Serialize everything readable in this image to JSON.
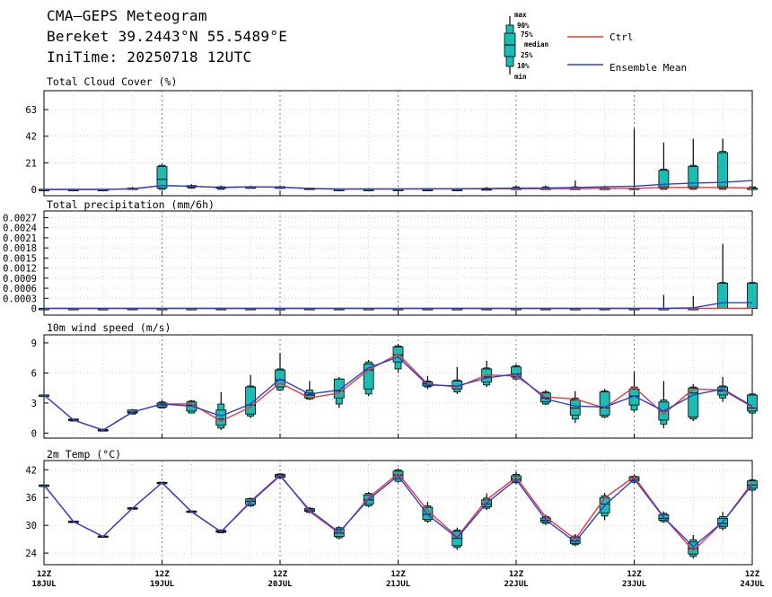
{
  "header": {
    "title": "CMA—GEPS Meteogram",
    "location": "Bereket 39.2443°N 55.5489°E",
    "init": "IniTime: 20250718 12UTC"
  },
  "legend": {
    "key_labels": [
      "max",
      "90%",
      "75%",
      "median",
      "25%",
      "10%",
      "min"
    ],
    "ctrl": "Ctrl",
    "mean": "Ensemble Mean",
    "ctrl_color": "#e8383a",
    "mean_color": "#2b3fd6",
    "box_color": "#1cbcb4"
  },
  "chart_data": [
    {
      "type": "box",
      "title": "Total Cloud Cover (%)",
      "yticks": [
        "0",
        "21",
        "42",
        "63"
      ],
      "ylim": [
        -5,
        78
      ],
      "x": [
        0,
        1,
        2,
        3,
        4,
        5,
        6,
        7,
        8,
        9,
        10,
        11,
        12,
        13,
        14,
        15,
        16,
        17,
        18,
        19,
        20,
        21,
        22,
        23,
        24
      ],
      "boxes": [
        [
          0,
          0,
          0,
          0,
          0,
          0,
          0
        ],
        [
          0,
          0,
          0,
          0,
          0,
          0,
          0
        ],
        [
          0,
          0,
          0,
          0,
          0,
          0,
          0
        ],
        [
          0,
          0,
          0,
          0.5,
          1,
          1,
          2
        ],
        [
          0,
          0,
          1,
          8,
          18,
          19,
          20
        ],
        [
          1,
          1,
          2,
          2,
          3,
          3,
          4
        ],
        [
          0,
          0,
          1,
          1,
          2,
          2,
          3
        ],
        [
          1,
          1,
          1,
          2,
          2,
          2,
          3
        ],
        [
          1,
          1,
          1,
          2,
          2,
          2,
          3
        ],
        [
          0,
          0,
          0,
          0,
          1,
          1,
          1
        ],
        [
          0,
          0,
          0,
          0,
          0,
          0,
          0.5
        ],
        [
          0,
          0,
          0,
          0,
          0,
          0,
          1
        ],
        [
          0,
          0,
          0,
          0,
          0,
          0,
          1
        ],
        [
          0,
          0,
          0,
          0,
          0,
          0,
          1
        ],
        [
          0,
          0,
          0,
          0,
          0,
          0,
          0.5
        ],
        [
          0,
          0,
          0,
          0,
          0.5,
          1,
          2
        ],
        [
          0,
          0,
          0,
          0.5,
          1,
          2,
          3
        ],
        [
          0,
          0,
          0,
          0.5,
          1,
          2,
          3
        ],
        [
          0,
          0,
          0.5,
          1,
          1,
          2,
          7
        ],
        [
          0,
          0,
          0.5,
          1,
          1,
          2,
          3
        ],
        [
          0,
          0,
          0.5,
          1,
          1,
          1,
          48
        ],
        [
          0,
          0,
          1,
          2,
          15,
          16,
          37
        ],
        [
          0,
          0,
          1,
          2,
          18,
          19,
          40
        ],
        [
          0,
          0,
          1,
          2,
          29,
          30,
          40
        ],
        [
          0,
          0,
          0,
          1,
          1,
          2,
          3
        ]
      ],
      "series": [
        {
          "name": "Ctrl",
          "values": [
            0,
            0,
            0,
            0.3,
            3,
            2.5,
            1.5,
            2,
            1.8,
            0.6,
            0.2,
            0.3,
            0.3,
            0.4,
            0.4,
            0.5,
            0.5,
            0.5,
            0.7,
            0.8,
            0.8,
            1.5,
            1.5,
            1.5,
            1
          ]
        },
        {
          "name": "Ensemble Mean",
          "values": [
            0,
            0,
            0,
            0.5,
            3,
            2.5,
            1.5,
            2,
            1.8,
            0.7,
            0.3,
            0.4,
            0.4,
            0.5,
            0.5,
            0.7,
            1,
            1,
            1.5,
            2,
            2.5,
            4,
            5,
            5.5,
            7
          ]
        }
      ]
    },
    {
      "type": "box",
      "title": "Total precipitation (mm/6h)",
      "yticks": [
        "0",
        "0.0003",
        "0.0006",
        "0.0009",
        "0.0012",
        "0.0015",
        "0.0018",
        "0.0021",
        "0.0024",
        "0.0027"
      ],
      "ylim": [
        -0.0002,
        0.0029
      ],
      "x": [
        0,
        1,
        2,
        3,
        4,
        5,
        6,
        7,
        8,
        9,
        10,
        11,
        12,
        13,
        14,
        15,
        16,
        17,
        18,
        19,
        20,
        21,
        22,
        23,
        24
      ],
      "boxes": [
        [
          0,
          0,
          0,
          0,
          0,
          0,
          0
        ],
        [
          0,
          0,
          0,
          0,
          0,
          0,
          0
        ],
        [
          0,
          0,
          0,
          0,
          0,
          0,
          0
        ],
        [
          0,
          0,
          0,
          0,
          0,
          0,
          0
        ],
        [
          0,
          0,
          0,
          0,
          0,
          0,
          0
        ],
        [
          0,
          0,
          0,
          0,
          0,
          0,
          0
        ],
        [
          0,
          0,
          0,
          0,
          0,
          0,
          0
        ],
        [
          0,
          0,
          0,
          0,
          0,
          0,
          0
        ],
        [
          0,
          0,
          0,
          0,
          0,
          0,
          0
        ],
        [
          0,
          0,
          0,
          0,
          0,
          0,
          0
        ],
        [
          0,
          0,
          0,
          0,
          0,
          0,
          0
        ],
        [
          0,
          0,
          0,
          0,
          0,
          0,
          0
        ],
        [
          0,
          0,
          0,
          0,
          0,
          0,
          0
        ],
        [
          0,
          0,
          0,
          0,
          0,
          0,
          0
        ],
        [
          0,
          0,
          0,
          0,
          0,
          0,
          0
        ],
        [
          0,
          0,
          0,
          0,
          0,
          0,
          0
        ],
        [
          0,
          0,
          0,
          0,
          0,
          0,
          0
        ],
        [
          0,
          0,
          0,
          0,
          0,
          0,
          0
        ],
        [
          0,
          0,
          0,
          0,
          0,
          0,
          0
        ],
        [
          0,
          0,
          0,
          0,
          0,
          0,
          0
        ],
        [
          0,
          0,
          0,
          0,
          0,
          0,
          0
        ],
        [
          0,
          0,
          0,
          0,
          0,
          0,
          0.0004
        ],
        [
          0,
          0,
          0,
          0,
          0,
          0,
          0.00037
        ],
        [
          0,
          0,
          0,
          0,
          0.00075,
          0.00077,
          0.00192
        ],
        [
          0,
          0,
          0,
          0,
          0.00075,
          0.00077,
          0.00077
        ]
      ],
      "series": [
        {
          "name": "Ctrl",
          "values": [
            0,
            0,
            0,
            0,
            0,
            0,
            0,
            0,
            0,
            0,
            0,
            0,
            0,
            0,
            0,
            0,
            0,
            0,
            0,
            0,
            0,
            0,
            0,
            0,
            0
          ]
        },
        {
          "name": "Ensemble Mean",
          "values": [
            0,
            0,
            0,
            0,
            0,
            0,
            0,
            0,
            0,
            0,
            0,
            0,
            0,
            0,
            0,
            0,
            0,
            0,
            0,
            0,
            0,
            0,
            2e-05,
            0.00017,
            0.00017
          ]
        }
      ]
    },
    {
      "type": "box",
      "title": "10m wind speed (m/s)",
      "yticks": [
        "0",
        "3",
        "6",
        "9"
      ],
      "ylim": [
        -0.5,
        9.8
      ],
      "x": [
        0,
        1,
        2,
        3,
        4,
        5,
        6,
        7,
        8,
        9,
        10,
        11,
        12,
        13,
        14,
        15,
        16,
        17,
        18,
        19,
        20,
        21,
        22,
        23,
        24
      ],
      "boxes": [
        [
          3.8,
          3.8,
          3.8,
          3.8,
          3.8,
          3.8,
          3.8
        ],
        [
          1.2,
          1.2,
          1.3,
          1.3,
          1.4,
          1.4,
          1.4
        ],
        [
          0.2,
          0.2,
          0.25,
          0.3,
          0.35,
          0.4,
          0.4
        ],
        [
          1.9,
          1.9,
          2,
          2.1,
          2.3,
          2.3,
          2.4
        ],
        [
          2.5,
          2.5,
          2.6,
          2.8,
          3,
          3.1,
          3.3
        ],
        [
          2,
          2,
          2.2,
          2.8,
          3.1,
          3.2,
          3.3
        ],
        [
          0.3,
          0.5,
          0.8,
          1.4,
          2.3,
          2.9,
          4.1
        ],
        [
          1.5,
          1.7,
          1.9,
          2.8,
          4.6,
          4.7,
          5.8
        ],
        [
          4.2,
          4.3,
          4.6,
          5.3,
          6.3,
          6.4,
          8
        ],
        [
          3.3,
          3.4,
          3.5,
          3.8,
          4,
          4.3,
          5.2
        ],
        [
          2.5,
          2.9,
          3.5,
          4.2,
          5.4,
          5.4,
          5.6
        ],
        [
          3.7,
          3.9,
          4.4,
          6.3,
          6.9,
          7.1,
          7.3
        ],
        [
          6,
          6.4,
          7.1,
          7.8,
          8.6,
          8.7,
          8.9
        ],
        [
          4.4,
          4.6,
          4.7,
          4.9,
          5.1,
          5.2,
          5.7
        ],
        [
          3.9,
          4.1,
          4.4,
          4.7,
          5.2,
          5.3,
          6.6
        ],
        [
          4.6,
          4.8,
          5.1,
          5.6,
          6.4,
          6.5,
          7.2
        ],
        [
          5.3,
          5.4,
          5.6,
          5.9,
          6.6,
          6.7,
          6.9
        ],
        [
          2.8,
          2.9,
          3.1,
          3.5,
          4,
          4.1,
          4.3
        ],
        [
          1,
          1.4,
          1.8,
          2.5,
          3.3,
          3.5,
          4.2
        ],
        [
          1.5,
          1.6,
          1.8,
          2.5,
          4.1,
          4.2,
          4.4
        ],
        [
          2.1,
          2.3,
          2.8,
          3.7,
          4.4,
          4.6,
          6.1
        ],
        [
          0.5,
          0.9,
          1.3,
          2.2,
          3.1,
          3.3,
          5.2
        ],
        [
          1.2,
          1.4,
          1.6,
          4,
          4.5,
          4.6,
          4.9
        ],
        [
          3.1,
          3.5,
          3.8,
          4.2,
          4.6,
          4.7,
          5.6
        ],
        [
          1.9,
          2,
          2.2,
          2.5,
          3.8,
          3.9,
          4
        ]
      ],
      "series": [
        {
          "name": "Ctrl",
          "values": [
            3.8,
            1.3,
            0.3,
            2.1,
            2.9,
            2.9,
            1.2,
            2.6,
            5,
            3.5,
            4,
            6.3,
            7.9,
            4.9,
            4.6,
            5.8,
            5.7,
            3.6,
            3.4,
            2.5,
            4.6,
            1.9,
            4.4,
            4.3,
            2.6
          ]
        },
        {
          "name": "Ensemble Mean",
          "values": [
            3.8,
            1.3,
            0.3,
            2.1,
            2.9,
            2.7,
            1.7,
            2.9,
            5.4,
            3.9,
            4.3,
            6.5,
            7.6,
            4.8,
            4.7,
            5.5,
            5.9,
            3.4,
            2.7,
            2.6,
            3.7,
            2.2,
            3.8,
            4.4,
            2.7
          ]
        }
      ]
    },
    {
      "type": "box",
      "title": "2m Temp (°C)",
      "yticks": [
        "24",
        "30",
        "36",
        "42"
      ],
      "ylim": [
        21.5,
        44
      ],
      "x": [
        0,
        1,
        2,
        3,
        4,
        5,
        6,
        7,
        8,
        9,
        10,
        11,
        12,
        13,
        14,
        15,
        16,
        17,
        18,
        19,
        20,
        21,
        22,
        23,
        24
      ],
      "boxes": [
        [
          38.7,
          38.7,
          38.7,
          38.7,
          38.7,
          38.7,
          38.7
        ],
        [
          30.7,
          30.7,
          30.8,
          30.8,
          30.9,
          30.9,
          30.9
        ],
        [
          27.5,
          27.5,
          27.6,
          27.6,
          27.7,
          27.7,
          27.7
        ],
        [
          33.6,
          33.6,
          33.7,
          33.7,
          33.8,
          33.8,
          33.8
        ],
        [
          39.1,
          39.1,
          39.2,
          39.2,
          39.3,
          39.3,
          39.3
        ],
        [
          32.8,
          32.8,
          32.9,
          33,
          33.1,
          33.1,
          33.2
        ],
        [
          28.3,
          28.4,
          28.5,
          28.7,
          28.9,
          29,
          29.1
        ],
        [
          34,
          34.2,
          34.5,
          35.2,
          35.7,
          35.8,
          36
        ],
        [
          40.1,
          40.2,
          40.4,
          40.7,
          41,
          41.1,
          41.3
        ],
        [
          32.6,
          32.8,
          33,
          33.3,
          33.6,
          33.7,
          34
        ],
        [
          27,
          27.3,
          27.6,
          28.3,
          29.2,
          29.5,
          29.8
        ],
        [
          33.9,
          34.2,
          34.6,
          35.5,
          36.6,
          36.9,
          37.2
        ],
        [
          39.2,
          39.5,
          40,
          40.9,
          41.7,
          42,
          42.3
        ],
        [
          30.5,
          30.9,
          31.3,
          32.4,
          33.9,
          34.2,
          35.1
        ],
        [
          24.7,
          25.2,
          25.6,
          27.2,
          28.7,
          29,
          29.5
        ],
        [
          33.3,
          33.7,
          34,
          34.6,
          35.5,
          35.9,
          36.9
        ],
        [
          38.9,
          39.2,
          39.5,
          40,
          40.7,
          41,
          41.6
        ],
        [
          30.1,
          30.4,
          30.7,
          31.1,
          31.6,
          31.9,
          32.3
        ],
        [
          25.5,
          25.8,
          26.1,
          26.6,
          27.4,
          27.7,
          28.1
        ],
        [
          31.1,
          32,
          32.7,
          34.6,
          36,
          36.4,
          37
        ],
        [
          39.1,
          39.3,
          39.6,
          40,
          40.5,
          40.6,
          41.1
        ],
        [
          30.5,
          30.8,
          31.1,
          31.5,
          32.3,
          32.6,
          33
        ],
        [
          22.8,
          23.3,
          23.8,
          25,
          26.4,
          26.9,
          27.9
        ],
        [
          28.9,
          29.4,
          29.8,
          30.4,
          31.5,
          31.9,
          32.9
        ],
        [
          37.3,
          37.6,
          38,
          38.7,
          39.6,
          39.8,
          40.1
        ]
      ],
      "series": [
        {
          "name": "Ctrl",
          "values": [
            38.7,
            30.8,
            27.6,
            33.7,
            39.2,
            33,
            28.6,
            35.2,
            40.9,
            33,
            28.3,
            36,
            41.2,
            33.2,
            27.5,
            35.5,
            40.4,
            31.8,
            27,
            35.9,
            40.5,
            31.8,
            24.5,
            30.7,
            39.2
          ]
        },
        {
          "name": "Ensemble Mean",
          "values": [
            38.7,
            30.8,
            27.6,
            33.7,
            39.2,
            32.9,
            28.6,
            35,
            40.7,
            33.3,
            28.5,
            35.6,
            40.7,
            32.3,
            27.3,
            34.8,
            39.9,
            31.2,
            26.4,
            34.3,
            40,
            31.7,
            25.4,
            30.7,
            38.8
          ]
        }
      ]
    }
  ],
  "x_axis": {
    "ticks": [
      {
        "hour": "12Z",
        "day": "18JUL"
      },
      {
        "hour": "12Z",
        "day": "19JUL"
      },
      {
        "hour": "12Z",
        "day": "20JUL"
      },
      {
        "hour": "12Z",
        "day": "21JUL"
      },
      {
        "hour": "12Z",
        "day": "22JUL"
      },
      {
        "hour": "12Z",
        "day": "23JUL"
      },
      {
        "hour": "12Z",
        "day": "24JUL"
      }
    ]
  }
}
